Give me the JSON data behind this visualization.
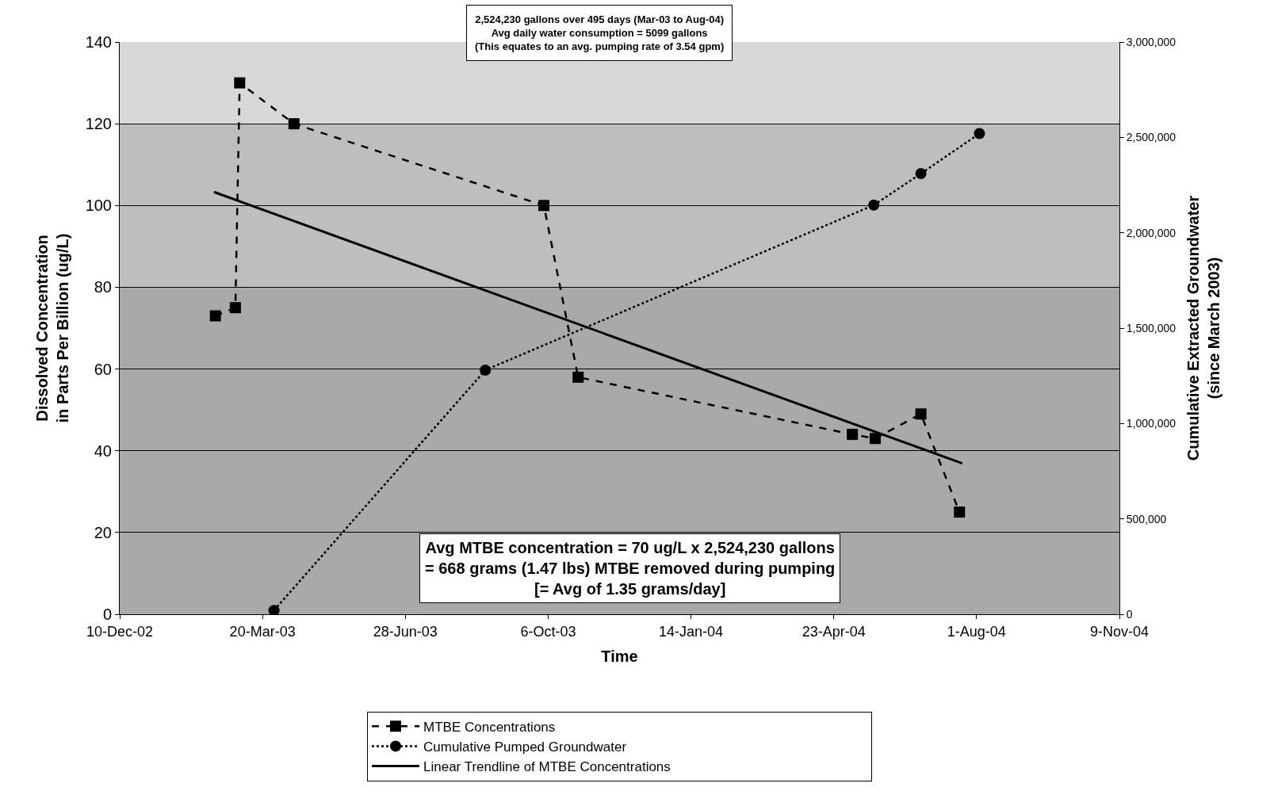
{
  "chart_data": {
    "type": "line",
    "xlabel": "Time",
    "ylabel": "Dissolved Concentration\nin Parts Per Billion (ug/L)",
    "y2label": "Cumulative Extracted Groundwater\n(since March 2003)",
    "xlim": [
      "2002-12-10",
      "2004-11-09"
    ],
    "xticks": [
      {
        "value": "2002-12-10",
        "label": "10-Dec-02"
      },
      {
        "value": "2003-03-20",
        "label": "20-Mar-03"
      },
      {
        "value": "2003-06-28",
        "label": "28-Jun-03"
      },
      {
        "value": "2003-10-06",
        "label": "6-Oct-03"
      },
      {
        "value": "2004-01-14",
        "label": "14-Jan-04"
      },
      {
        "value": "2004-04-23",
        "label": "23-Apr-04"
      },
      {
        "value": "2004-08-01",
        "label": "1-Aug-04"
      },
      {
        "value": "2004-11-09",
        "label": "9-Nov-04"
      }
    ],
    "ylim": [
      0,
      140
    ],
    "yticks": [
      0,
      20,
      40,
      60,
      80,
      100,
      120,
      140
    ],
    "y2lim": [
      0,
      3000000
    ],
    "y2ticks": [
      0,
      {
        "value": 500000,
        "label": "500,000"
      },
      {
        "value": 1000000,
        "label": "1,000,000"
      },
      {
        "value": 1500000,
        "label": "1,500,000"
      },
      {
        "value": 2000000,
        "label": "2,000,000"
      },
      {
        "value": 2500000,
        "label": "2,500,000"
      },
      {
        "value": 3000000,
        "label": "3,000,000"
      }
    ],
    "grid": "y",
    "legend": "bottom",
    "bands": [
      {
        "axis": "y",
        "from": 0,
        "to": 80,
        "color": "#a9a9a9"
      },
      {
        "axis": "y",
        "from": 80,
        "to": 120,
        "color": "#bebebe"
      },
      {
        "axis": "y",
        "from": 120,
        "to": 140,
        "color": "#d8d8d8"
      }
    ],
    "series": [
      {
        "name": "MTBE Concentrations",
        "color": "#000000",
        "marker": "square",
        "line_style": "dashed",
        "x": [
          "2003-02-15",
          "2003-03-01",
          "2003-03-04",
          "2003-04-11",
          "2003-10-03",
          "2003-10-27",
          "2004-05-06",
          "2004-05-22",
          "2004-06-23",
          "2004-07-20"
        ],
        "values": [
          73,
          75,
          130,
          120,
          100,
          58,
          44,
          43,
          49,
          25
        ]
      },
      {
        "name": "Cumulative Pumped Groundwater",
        "color": "#000000",
        "marker": "circle",
        "line_style": "dotted",
        "axis": "y2",
        "x": [
          "2003-03-28",
          "2003-08-23",
          "2004-05-21",
          "2004-06-23",
          "2004-08-03"
        ],
        "values": [
          20000,
          1280000,
          2145000,
          2310000,
          2520000
        ]
      },
      {
        "name": "Linear Trendline of MTBE Concentrations",
        "color": "#000000",
        "marker": "none",
        "line_style": "solid",
        "x": [
          "2003-02-14",
          "2004-07-22"
        ],
        "values": [
          103.3,
          36.9
        ]
      }
    ],
    "annotations": [
      "2,524,230 gallons over 495 days (Mar-03 to Aug-04)\nAvg daily water consumption = 5099 gallons\n(This equates to an avg. pumping rate of 3.54 gpm)",
      "Avg MTBE concentration = 70 ug/L x 2,524,230 gallons\n= 668 grams (1.47 lbs) MTBE removed during pumping\n[= Avg of 1.35 grams/day]"
    ]
  }
}
